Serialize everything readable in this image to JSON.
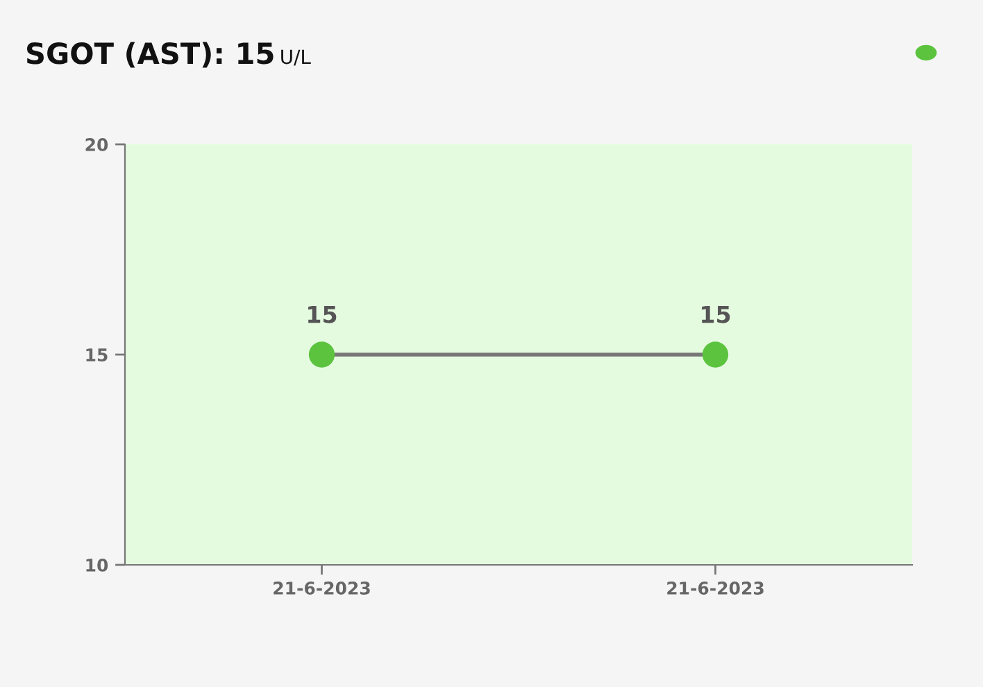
{
  "chart_data": {
    "type": "line",
    "title": "SGOT (AST): 15",
    "subtitle": "U/L",
    "categories": [
      "21-6-2023",
      "21-6-2023"
    ],
    "series": [
      {
        "color": "#5cc33f",
        "values": [
          15,
          15
        ]
      }
    ],
    "ylim": [
      10,
      20
    ],
    "yticks": [
      10,
      15,
      20
    ],
    "bands": [
      {
        "axis": "y",
        "from": 10,
        "to": 20,
        "color": "#e5fbe0"
      }
    ],
    "data_labels": true,
    "marker": "circle",
    "line_style": "solid",
    "grid": false,
    "legend": false
  }
}
